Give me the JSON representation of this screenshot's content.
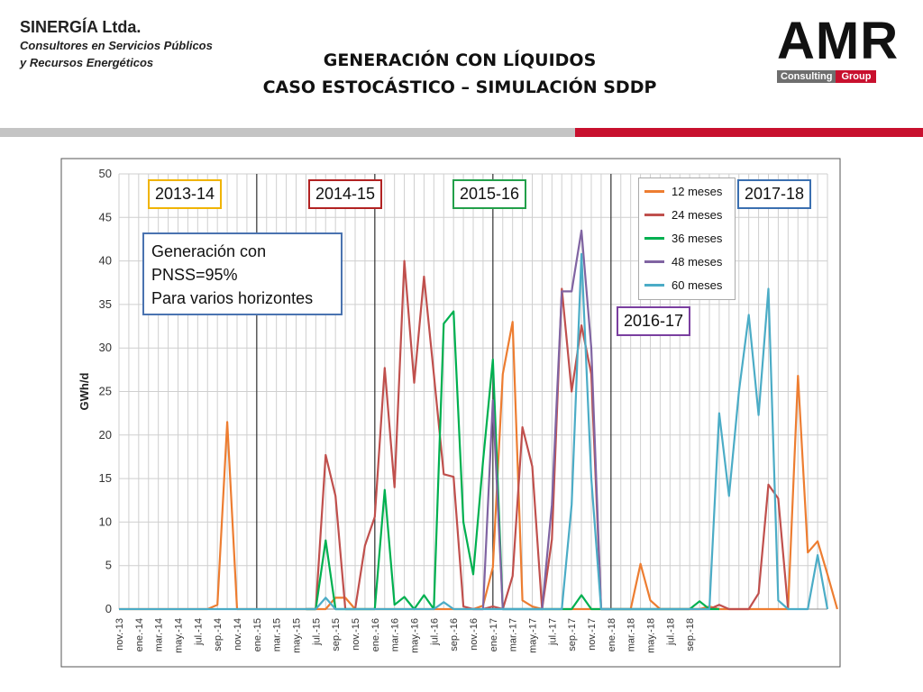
{
  "header": {
    "company_name": "SINERGÍA Ltda.",
    "company_sub1": "Consultores en Servicios Públicos",
    "company_sub2": "y Recursos Energéticos",
    "title_line1": "GENERACIÓN CON LÍQUIDOS",
    "title_line2": "CASO ESTOCÁSTICO – SIMULACIÓN SDDP",
    "logo_text": "AMR",
    "logo_badge1": "Consulting",
    "logo_badge2": "Group"
  },
  "colors": {
    "accent_red": "#c8102e",
    "divider_grey": "#c4c4c4"
  },
  "annotations": {
    "seasons": [
      {
        "label": "2013-14",
        "color": "#f0b400"
      },
      {
        "label": "2014-15",
        "color": "#b22222"
      },
      {
        "label": "2015-16",
        "color": "#22a04a"
      },
      {
        "label": "2016-17",
        "color": "#7a3fa0"
      },
      {
        "label": "2017-18",
        "color": "#3a6fb0"
      }
    ],
    "note_line1": "Generación con",
    "note_line2": "PNSS=95%",
    "note_line3": "Para varios horizontes"
  },
  "chart_data": {
    "type": "line",
    "ylabel": "GWh/d",
    "xlabel": "",
    "ylim": [
      0,
      50
    ],
    "yticks": [
      0,
      5,
      10,
      15,
      20,
      25,
      30,
      35,
      40,
      45,
      50
    ],
    "grid": true,
    "legend_position": "top-right",
    "x_tick_labels": [
      "nov.-13",
      "ene.-14",
      "mar.-14",
      "may.-14",
      "jul.-14",
      "sep.-14",
      "nov.-14",
      "ene.-15",
      "mar.-15",
      "may.-15",
      "jul.-15",
      "sep.-15",
      "nov.-15",
      "ene.-16",
      "mar.-16",
      "may.-16",
      "jul.-16",
      "sep.-16",
      "nov.-16",
      "ene.-17",
      "mar.-17",
      "may.-17",
      "jul.-17",
      "sep.-17",
      "nov.-17",
      "ene.-18",
      "mar.-18",
      "may.-18",
      "jul.-18",
      "sep.-18"
    ],
    "season_dividers": [
      "ene.-15",
      "ene.-16",
      "ene.-17",
      "ene.-18"
    ],
    "series": [
      {
        "name": "12 meses",
        "color": "#ed7d31",
        "points": [
          [
            0,
            0
          ],
          [
            9,
            0
          ],
          [
            10,
            0.5
          ],
          [
            11,
            21.5
          ],
          [
            12,
            0
          ],
          [
            21,
            0
          ],
          [
            22,
            1.3
          ],
          [
            23,
            1.3
          ],
          [
            24,
            0
          ],
          [
            28,
            0
          ],
          [
            29,
            0
          ],
          [
            30,
            0
          ],
          [
            31,
            0
          ],
          [
            32,
            0
          ],
          [
            33,
            0
          ],
          [
            34,
            0
          ],
          [
            35,
            0
          ],
          [
            36,
            0
          ],
          [
            37,
            0.4
          ],
          [
            38,
            4.8
          ],
          [
            39,
            27
          ],
          [
            40,
            33
          ],
          [
            41,
            1
          ],
          [
            42,
            0.3
          ],
          [
            43,
            0
          ],
          [
            46,
            0
          ],
          [
            47,
            0
          ],
          [
            48,
            0
          ],
          [
            49,
            0
          ],
          [
            50,
            0
          ],
          [
            51,
            0
          ],
          [
            52,
            0
          ],
          [
            53,
            5.2
          ],
          [
            54,
            1
          ],
          [
            55,
            0
          ],
          [
            59,
            0
          ],
          [
            60,
            0.3
          ],
          [
            61,
            0
          ],
          [
            64,
            0
          ],
          [
            65,
            0
          ],
          [
            66,
            0
          ],
          [
            67,
            0
          ],
          [
            68,
            0
          ],
          [
            69,
            26.8
          ],
          [
            70,
            6.5
          ],
          [
            71,
            7.8
          ],
          [
            72,
            4
          ],
          [
            73,
            0
          ]
        ]
      },
      {
        "name": "24 meses",
        "color": "#c0504d",
        "points": [
          [
            19,
            0
          ],
          [
            20,
            0
          ],
          [
            21,
            17.7
          ],
          [
            22,
            13
          ],
          [
            23,
            0
          ],
          [
            24,
            0
          ],
          [
            25,
            7.3
          ],
          [
            26,
            10.6
          ],
          [
            27,
            27.7
          ],
          [
            28,
            14
          ],
          [
            29,
            40
          ],
          [
            30,
            26
          ],
          [
            31,
            38.2
          ],
          [
            32,
            27
          ],
          [
            33,
            15.5
          ],
          [
            34,
            15.2
          ],
          [
            35,
            0.3
          ],
          [
            36,
            0
          ],
          [
            37,
            0
          ],
          [
            38,
            0.3
          ],
          [
            39,
            0
          ],
          [
            40,
            3.8
          ],
          [
            41,
            20.9
          ],
          [
            42,
            16.4
          ],
          [
            43,
            0
          ],
          [
            44,
            8
          ],
          [
            45,
            36.8
          ],
          [
            46,
            25
          ],
          [
            47,
            32.6
          ],
          [
            48,
            27
          ],
          [
            49,
            0
          ],
          [
            60,
            0
          ],
          [
            61,
            0.5
          ],
          [
            62,
            0
          ],
          [
            63,
            0
          ],
          [
            64,
            0
          ],
          [
            65,
            1.8
          ],
          [
            66,
            14.3
          ],
          [
            67,
            12.7
          ],
          [
            68,
            0
          ]
        ]
      },
      {
        "name": "36 meses",
        "color": "#00b050",
        "points": [
          [
            19,
            0
          ],
          [
            20,
            0
          ],
          [
            21,
            7.9
          ],
          [
            22,
            0
          ],
          [
            23,
            0
          ],
          [
            24,
            0
          ],
          [
            25,
            0
          ],
          [
            26,
            0
          ],
          [
            27,
            13.7
          ],
          [
            28,
            0.5
          ],
          [
            29,
            1.4
          ],
          [
            30,
            0
          ],
          [
            31,
            1.6
          ],
          [
            32,
            0
          ],
          [
            33,
            32.8
          ],
          [
            34,
            34.2
          ],
          [
            35,
            10
          ],
          [
            36,
            4
          ],
          [
            37,
            17
          ],
          [
            38,
            28.7
          ],
          [
            39,
            0
          ],
          [
            43,
            0
          ],
          [
            44,
            0
          ],
          [
            45,
            0
          ],
          [
            46,
            0
          ],
          [
            47,
            1.6
          ],
          [
            48,
            0
          ],
          [
            58,
            0
          ],
          [
            59,
            0.9
          ],
          [
            60,
            0
          ],
          [
            61,
            0
          ]
        ]
      },
      {
        "name": "48 meses",
        "color": "#8064a2",
        "points": [
          [
            36,
            0
          ],
          [
            37,
            0
          ],
          [
            38,
            24
          ],
          [
            39,
            0
          ],
          [
            40,
            0
          ],
          [
            43,
            0
          ],
          [
            44,
            12
          ],
          [
            45,
            36.5
          ],
          [
            46,
            36.5
          ],
          [
            47,
            43.5
          ],
          [
            48,
            30
          ],
          [
            49,
            0
          ],
          [
            50,
            0
          ]
        ]
      },
      {
        "name": "60 meses",
        "color": "#4bacc6",
        "points": [
          [
            0,
            0
          ],
          [
            19,
            0
          ],
          [
            20,
            0
          ],
          [
            21,
            1.3
          ],
          [
            22,
            0
          ],
          [
            23,
            0
          ],
          [
            28,
            0
          ],
          [
            29,
            0
          ],
          [
            30,
            0
          ],
          [
            31,
            0
          ],
          [
            32,
            0
          ],
          [
            33,
            0.8
          ],
          [
            34,
            0
          ],
          [
            35,
            0
          ],
          [
            45,
            0
          ],
          [
            46,
            12
          ],
          [
            47,
            40.8
          ],
          [
            48,
            15
          ],
          [
            49,
            0
          ],
          [
            50,
            0
          ],
          [
            58,
            0
          ],
          [
            59,
            0
          ],
          [
            60,
            0
          ],
          [
            61,
            22.5
          ],
          [
            62,
            13
          ],
          [
            63,
            25
          ],
          [
            64,
            33.8
          ],
          [
            65,
            22.3
          ],
          [
            66,
            36.8
          ],
          [
            67,
            1
          ],
          [
            68,
            0
          ],
          [
            69,
            0
          ],
          [
            70,
            0
          ],
          [
            71,
            6.2
          ],
          [
            72,
            0
          ]
        ]
      }
    ]
  }
}
